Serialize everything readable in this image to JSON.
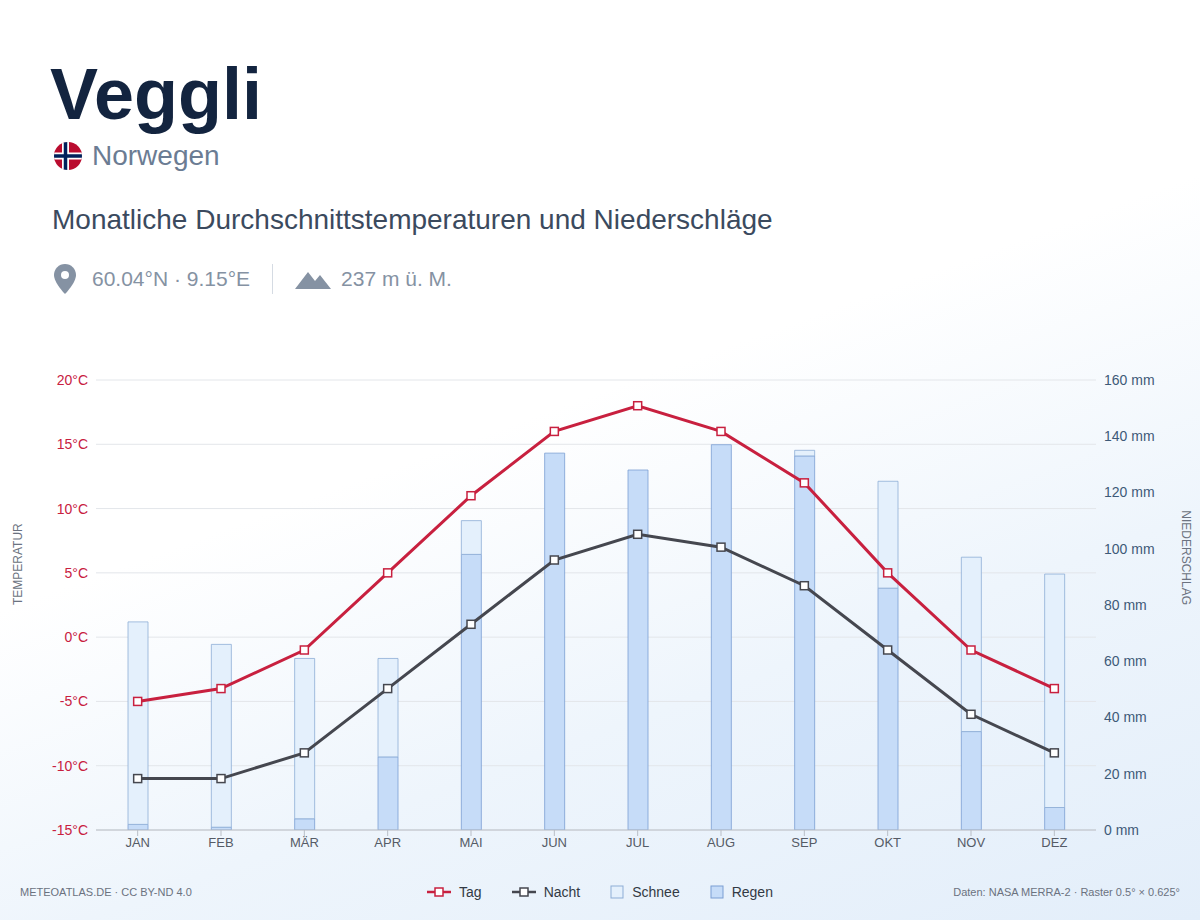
{
  "chart_data": {
    "type": "bar_line",
    "title": "Veggli",
    "country": "Norwegen",
    "subtitle": "Monatliche Durchschnittstemperaturen und Niederschläge",
    "location": "60.04°N · 9.15°E",
    "elevation": "237 m ü. M.",
    "credit": "METEOATLAS.DE · CC BY-ND 4.0",
    "source": "Daten: NASA MERRA-2 · Raster 0.5° × 0.625°",
    "y_label": "TEMPERATUR",
    "y2_label": "NIEDERSCHLAG",
    "categories": [
      "JAN",
      "FEB",
      "MÄR",
      "APR",
      "MAI",
      "JUN",
      "JUL",
      "AUG",
      "SEP",
      "OKT",
      "NOV",
      "DEZ"
    ],
    "series": [
      {
        "name": "Tag",
        "type": "line",
        "color": "#c8203f",
        "marker": "square",
        "values": [
          -5,
          -4,
          -1,
          5,
          11,
          16,
          18,
          16,
          12,
          5,
          -1,
          -4
        ]
      },
      {
        "name": "Nacht",
        "type": "line",
        "color": "#45474f",
        "marker": "square",
        "values": [
          -11,
          -11,
          -9,
          -4,
          1,
          6,
          8,
          7,
          4,
          -1,
          -6,
          -9
        ]
      },
      {
        "name": "Schnee",
        "type": "bar",
        "axis": "y2",
        "color": "#e4f0fc",
        "values": [
          72,
          65,
          57,
          35,
          12,
          0,
          0,
          0,
          2,
          38,
          62,
          83
        ]
      },
      {
        "name": "Regen",
        "type": "bar",
        "axis": "y2",
        "color": "#c6dcf8",
        "values": [
          2,
          1,
          4,
          26,
          98,
          134,
          128,
          137,
          133,
          86,
          35,
          8
        ]
      }
    ],
    "stacked": true,
    "ylim": [
      -15,
      20
    ],
    "yticks": [
      {
        "value": -15,
        "label": "-15°C"
      },
      {
        "value": -10,
        "label": "-10°C"
      },
      {
        "value": -5,
        "label": "-5°C"
      },
      {
        "value": 0,
        "label": "0°C"
      },
      {
        "value": 5,
        "label": "5°C"
      },
      {
        "value": 10,
        "label": "10°C"
      },
      {
        "value": 15,
        "label": "15°C"
      },
      {
        "value": 20,
        "label": "20°C"
      }
    ],
    "y2lim": [
      0,
      160
    ],
    "y2ticks": [
      {
        "value": 0,
        "label": "0 mm"
      },
      {
        "value": 20,
        "label": "20 mm"
      },
      {
        "value": 40,
        "label": "40 mm"
      },
      {
        "value": 60,
        "label": "60 mm"
      },
      {
        "value": 80,
        "label": "80 mm"
      },
      {
        "value": 100,
        "label": "100 mm"
      },
      {
        "value": 120,
        "label": "120 mm"
      },
      {
        "value": 140,
        "label": "140 mm"
      },
      {
        "value": 160,
        "label": "160 mm"
      }
    ],
    "grid": true,
    "legend": "bottom"
  }
}
